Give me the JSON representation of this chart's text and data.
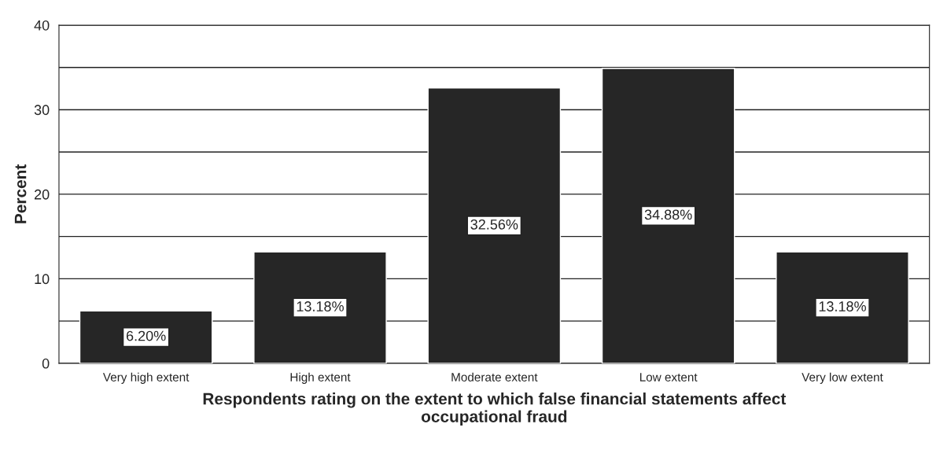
{
  "chart_data": {
    "type": "bar",
    "categories": [
      "Very high extent",
      "High extent",
      "Moderate extent",
      "Low extent",
      "Very low extent"
    ],
    "values": [
      6.2,
      13.18,
      32.56,
      34.88,
      13.18
    ],
    "value_labels": [
      "6.20%",
      "13.18%",
      "32.56%",
      "34.88%",
      "13.18%"
    ],
    "color": "#262626",
    "xlabel": "Respondents rating on the extent to which false financial statements affect\noccupational fraud",
    "ylabel": "Percent",
    "ylim": [
      0,
      40
    ],
    "yticks": [
      0,
      {
        "value": 5,
        "label": null
      },
      10,
      {
        "value": 15,
        "label": null
      },
      20,
      {
        "value": 25,
        "label": null
      },
      30,
      {
        "value": 35,
        "label": null
      },
      40
    ],
    "grid": "y"
  }
}
